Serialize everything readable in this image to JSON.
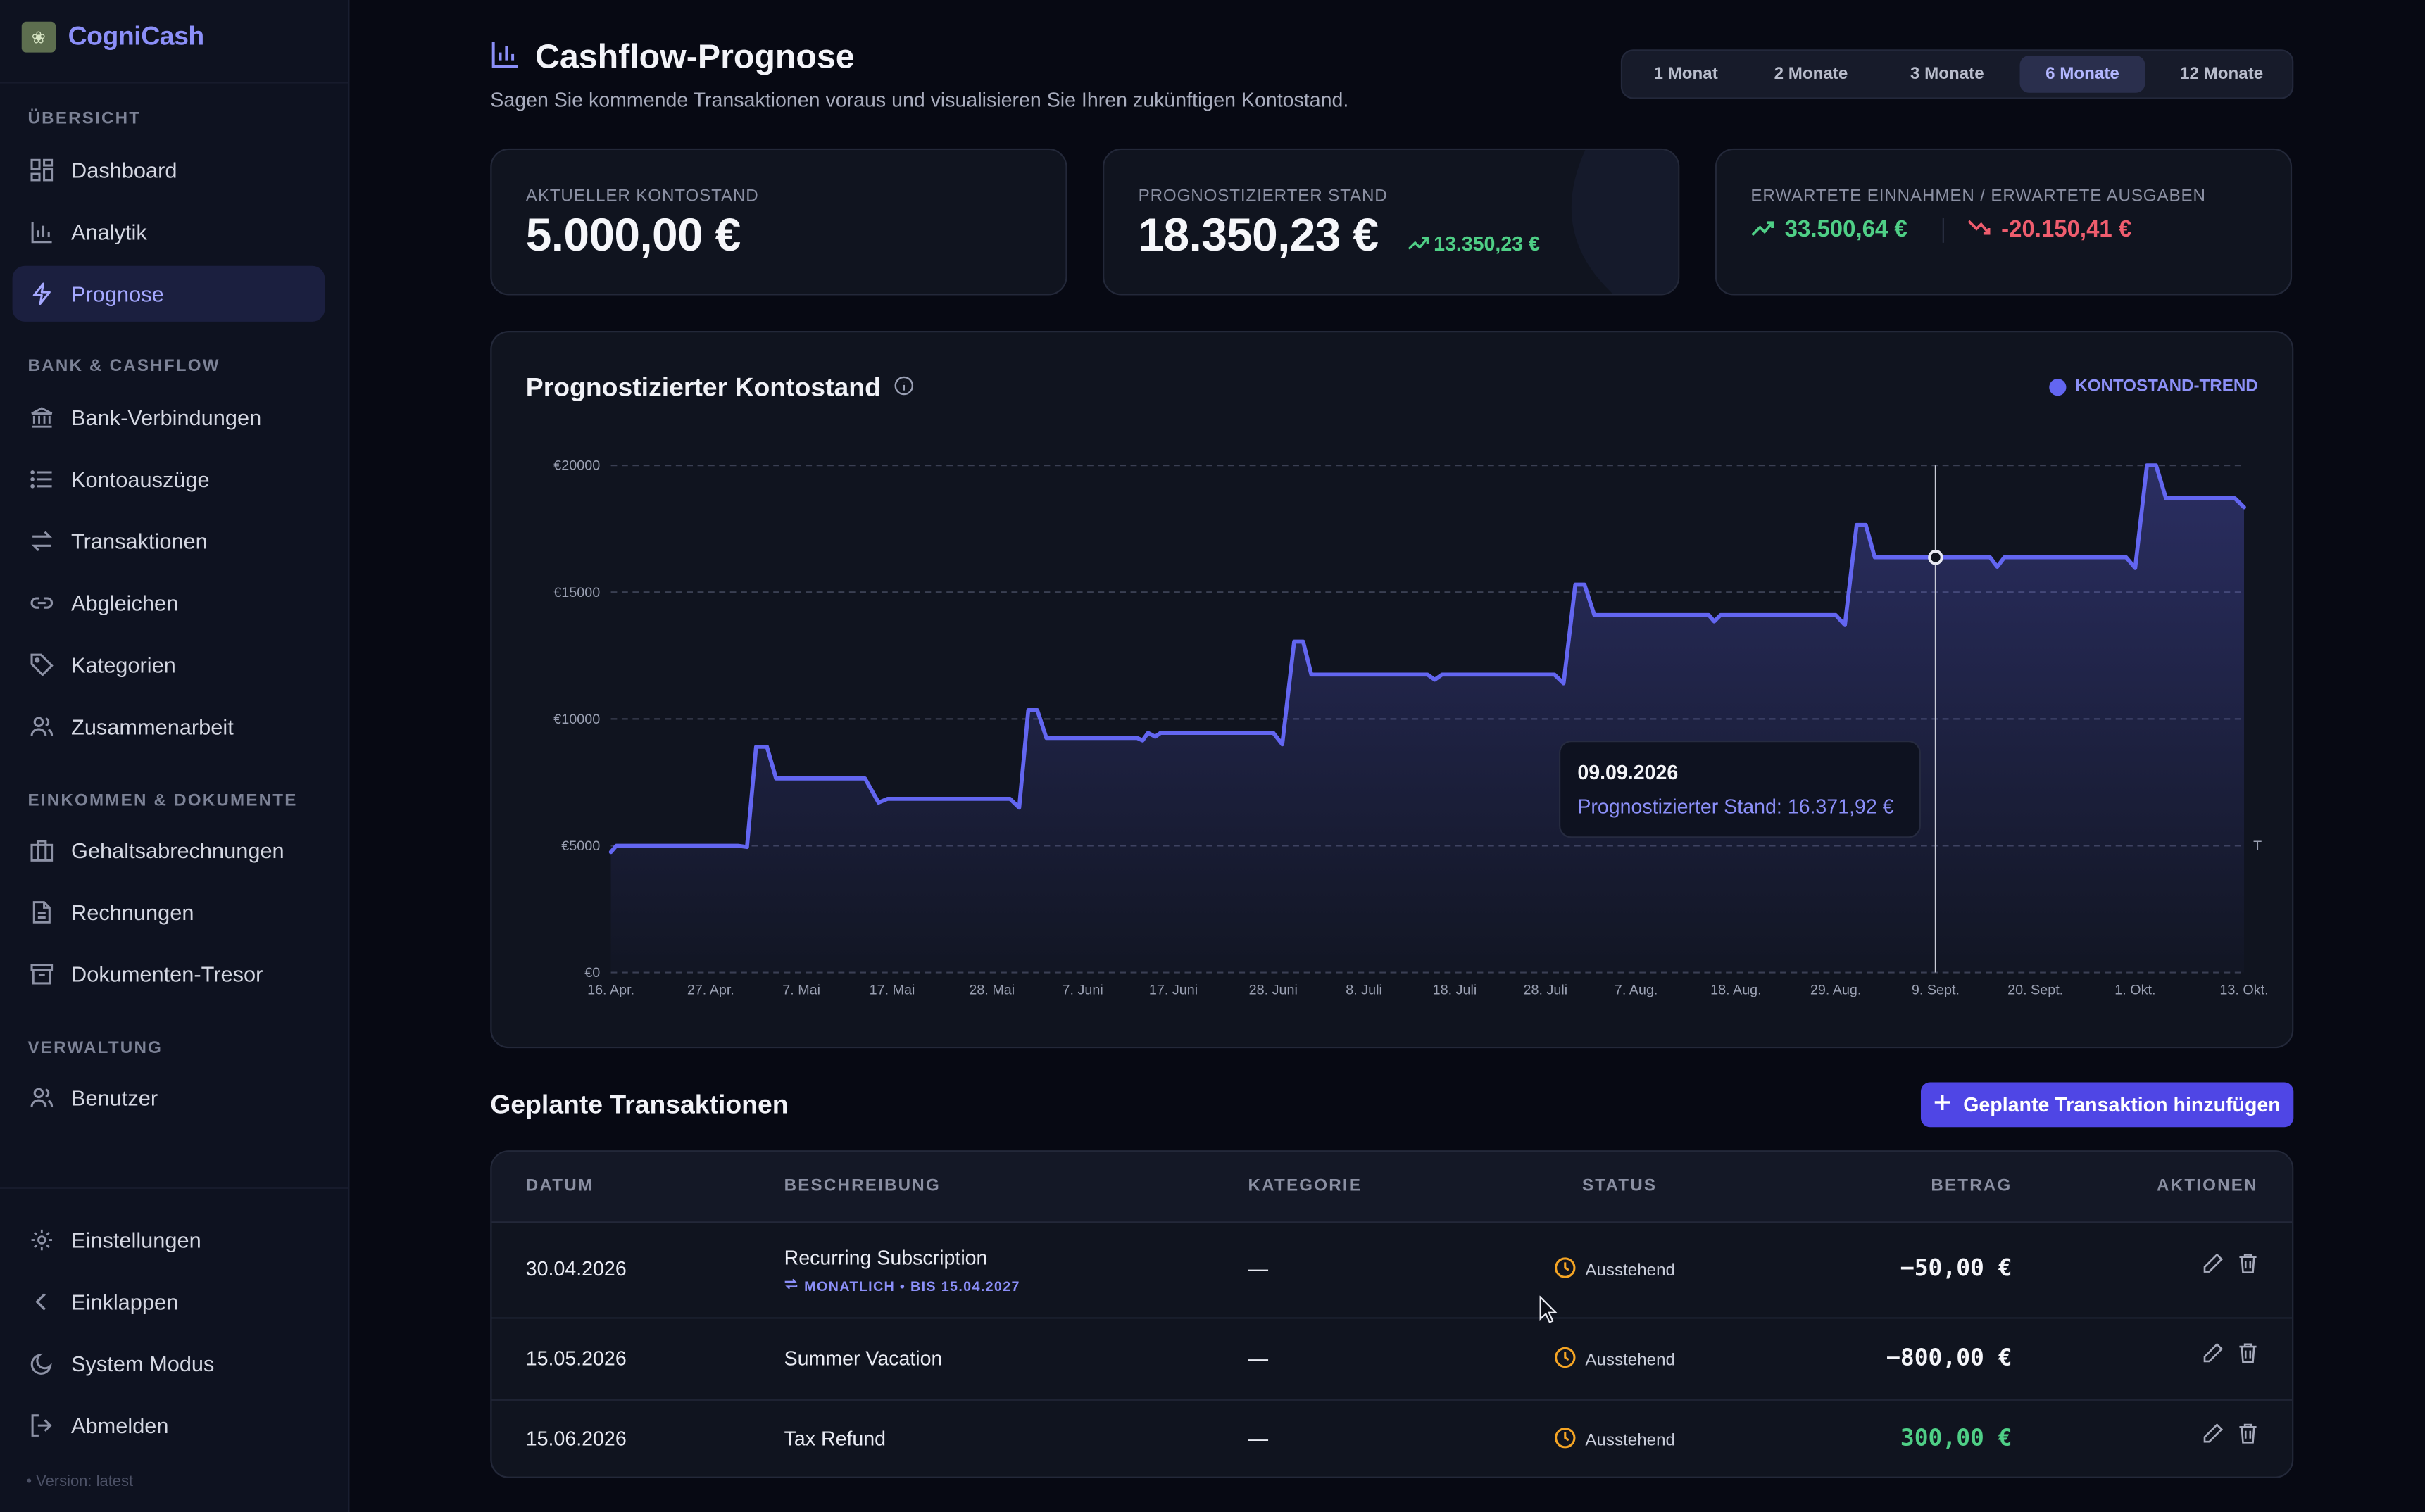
{
  "app": {
    "name": "CogniCash",
    "version": "• Version: latest"
  },
  "sidebar": {
    "sections": [
      {
        "title": "Übersicht",
        "items": [
          {
            "label": "Dashboard",
            "icon": "dashboard-icon"
          },
          {
            "label": "Analytik",
            "icon": "analytics-icon"
          },
          {
            "label": "Prognose",
            "icon": "lightning-icon",
            "active": true
          }
        ]
      },
      {
        "title": "Bank & Cashflow",
        "items": [
          {
            "label": "Bank-Verbindungen",
            "icon": "bank-icon"
          },
          {
            "label": "Kontoauszüge",
            "icon": "list-icon"
          },
          {
            "label": "Transaktionen",
            "icon": "transfer-icon"
          },
          {
            "label": "Abgleichen",
            "icon": "link-icon"
          },
          {
            "label": "Kategorien",
            "icon": "tag-icon"
          },
          {
            "label": "Zusammenarbeit",
            "icon": "users-icon"
          }
        ]
      },
      {
        "title": "Einkommen & Dokumente",
        "items": [
          {
            "label": "Gehaltsabrechnungen",
            "icon": "briefcase-icon"
          },
          {
            "label": "Rechnungen",
            "icon": "file-icon"
          },
          {
            "label": "Dokumenten-Tresor",
            "icon": "archive-icon"
          }
        ]
      },
      {
        "title": "Verwaltung",
        "items": [
          {
            "label": "Benutzer",
            "icon": "user-icon"
          }
        ]
      }
    ],
    "bottom": [
      {
        "label": "Einstellungen",
        "icon": "gear-icon"
      },
      {
        "label": "Einklappen",
        "icon": "chevron-left-icon"
      },
      {
        "label": "System Modus",
        "icon": "moon-icon"
      },
      {
        "label": "Abmelden",
        "icon": "logout-icon"
      }
    ]
  },
  "header": {
    "title": "Cashflow-Prognose",
    "subtitle": "Sagen Sie kommende Transaktionen voraus und visualisieren Sie Ihren zukünftigen Kontostand.",
    "ranges": [
      "1 Monat",
      "2 Monate",
      "3 Monate",
      "6 Monate",
      "12 Monate"
    ],
    "selected_range": "6 Monate"
  },
  "cards": {
    "current": {
      "label": "Aktueller Kontostand",
      "value": "5.000,00 €"
    },
    "forecast": {
      "label": "Prognostizierter Stand",
      "value": "18.350,23 €",
      "delta": "13.350,23 €"
    },
    "expected": {
      "label": "Erwartete Einnahmen / Erwartete Ausgaben",
      "income": "33.500,64 €",
      "expenses": "-20.150,41 €"
    }
  },
  "colors": {
    "accent": "#6366f1",
    "positive": "#4fcf86",
    "negative": "#ef5d6e",
    "warning": "#f5a524"
  },
  "chart": {
    "title": "Prognostizierter Kontostand",
    "legend": "Kontostand-Trend",
    "tooltip": {
      "date": "09.09.2026",
      "text": "Prognostizierter Stand: 16.371,92 €"
    },
    "end_marker": "T"
  },
  "chart_data": {
    "type": "area",
    "title": "Prognostizierter Kontostand",
    "series": [
      {
        "name": "Kontostand-Trend"
      }
    ],
    "ylim": [
      0,
      20000
    ],
    "y_ticks": [
      0,
      5000,
      10000,
      15000,
      20000
    ],
    "y_tick_labels": [
      "€0",
      "€5000",
      "€10000",
      "€15000",
      "€20000"
    ],
    "xlim_days": [
      0,
      180
    ],
    "x_ticks": [
      {
        "day": 0,
        "label": "16. Apr."
      },
      {
        "day": 11,
        "label": "27. Apr."
      },
      {
        "day": 21,
        "label": "7. Mai"
      },
      {
        "day": 31,
        "label": "17. Mai"
      },
      {
        "day": 42,
        "label": "28. Mai"
      },
      {
        "day": 52,
        "label": "7. Juni"
      },
      {
        "day": 62,
        "label": "17. Juni"
      },
      {
        "day": 73,
        "label": "28. Juni"
      },
      {
        "day": 83,
        "label": "8. Juli"
      },
      {
        "day": 93,
        "label": "18. Juli"
      },
      {
        "day": 103,
        "label": "28. Juli"
      },
      {
        "day": 113,
        "label": "7. Aug."
      },
      {
        "day": 124,
        "label": "18. Aug."
      },
      {
        "day": 135,
        "label": "29. Aug."
      },
      {
        "day": 146,
        "label": "9. Sept."
      },
      {
        "day": 157,
        "label": "20. Sept."
      },
      {
        "day": 168,
        "label": "1. Okt."
      },
      {
        "day": 180,
        "label": "13. Okt."
      }
    ],
    "points": [
      [
        0,
        4750
      ],
      [
        0.6,
        5000
      ],
      [
        14,
        5000
      ],
      [
        15,
        4950
      ],
      [
        16,
        8900
      ],
      [
        17.2,
        8900
      ],
      [
        18.2,
        7650
      ],
      [
        28,
        7650
      ],
      [
        29.5,
        6700
      ],
      [
        30.5,
        6850
      ],
      [
        44,
        6850
      ],
      [
        45,
        6500
      ],
      [
        46,
        10350
      ],
      [
        47,
        10350
      ],
      [
        48,
        9250
      ],
      [
        58,
        9250
      ],
      [
        58.6,
        9150
      ],
      [
        59.2,
        9450
      ],
      [
        60,
        9300
      ],
      [
        60.6,
        9450
      ],
      [
        73,
        9450
      ],
      [
        74,
        9000
      ],
      [
        75.3,
        13050
      ],
      [
        76.3,
        13050
      ],
      [
        77.2,
        11750
      ],
      [
        90,
        11750
      ],
      [
        90.8,
        11550
      ],
      [
        91.6,
        11750
      ],
      [
        104,
        11750
      ],
      [
        105,
        11400
      ],
      [
        106.3,
        15300
      ],
      [
        107.3,
        15300
      ],
      [
        108.4,
        14100
      ],
      [
        121,
        14100
      ],
      [
        121.6,
        13850
      ],
      [
        122.3,
        14100
      ],
      [
        135,
        14100
      ],
      [
        136,
        13700
      ],
      [
        137.3,
        17650
      ],
      [
        138.3,
        17650
      ],
      [
        139.3,
        16380
      ],
      [
        146,
        16372
      ],
      [
        152,
        16380
      ],
      [
        152.8,
        16000
      ],
      [
        153.6,
        16380
      ],
      [
        167,
        16380
      ],
      [
        168,
        15950
      ],
      [
        169.3,
        20000
      ],
      [
        170.3,
        20000
      ],
      [
        171.4,
        18700
      ],
      [
        179,
        18700
      ],
      [
        180,
        18350
      ]
    ],
    "highlight": {
      "day": 146,
      "date": "09.09.2026",
      "value": 16371.92
    }
  },
  "planned": {
    "title": "Geplante Transaktionen",
    "add_label": "Geplante Transaktion hinzufügen",
    "columns": [
      "Datum",
      "Beschreibung",
      "Kategorie",
      "Status",
      "Betrag",
      "Aktionen"
    ],
    "rows": [
      {
        "date": "30.04.2026",
        "description": "Recurring Subscription",
        "recurrence": "MONATLICH • BIS 15.04.2027",
        "category": "—",
        "status": "Ausstehend",
        "amount": "−50,00 €"
      },
      {
        "date": "15.05.2026",
        "description": "Summer Vacation",
        "category": "—",
        "status": "Ausstehend",
        "amount": "−800,00 €"
      },
      {
        "date": "15.06.2026",
        "description": "Tax Refund",
        "category": "—",
        "status": "Ausstehend",
        "amount": "300,00 €"
      }
    ]
  }
}
